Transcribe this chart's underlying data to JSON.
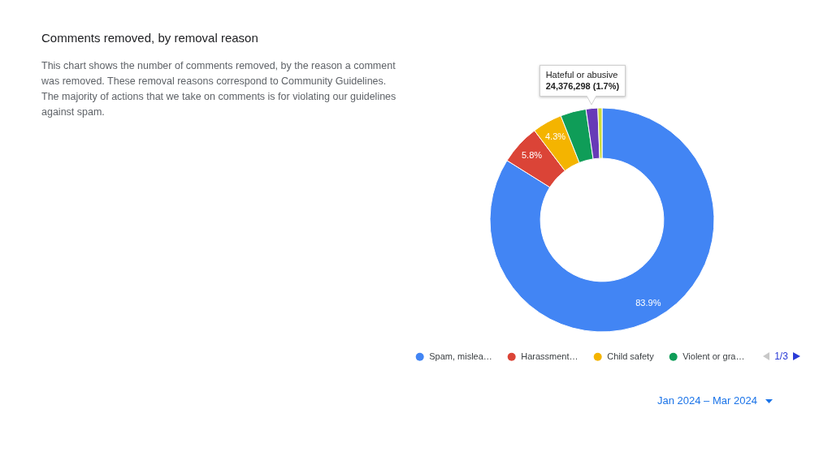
{
  "chart_data": {
    "type": "donut",
    "title": "Comments removed, by removal reason",
    "subtitle": "This chart shows the number of comments removed, by the reason a comment was removed. These removal reasons correspond to Community Guidelines. The majority of actions that we take on comments is for violating our guidelines against spam.",
    "categories": [
      "Spam, mislea…",
      "Harassment…",
      "Child safety",
      "Violent or gra…",
      "Hateful or abusive",
      null
    ],
    "values": [
      83.9,
      5.8,
      4.3,
      3.7,
      1.7,
      0.6
    ],
    "colors": [
      "#4285f4",
      "#db4437",
      "#f4b400",
      "#0f9d58",
      "#673ab7",
      "#cddc39"
    ],
    "value_labels": [
      "83.9%",
      "5.8%",
      "4.3%",
      null,
      null,
      null
    ],
    "legend": "bottom",
    "annotations": [
      {
        "text": "24,376,298 (1.7%)",
        "x": "Hateful or abusive"
      },
      "1/3",
      "Jan 2024 – Mar 2024"
    ]
  }
}
